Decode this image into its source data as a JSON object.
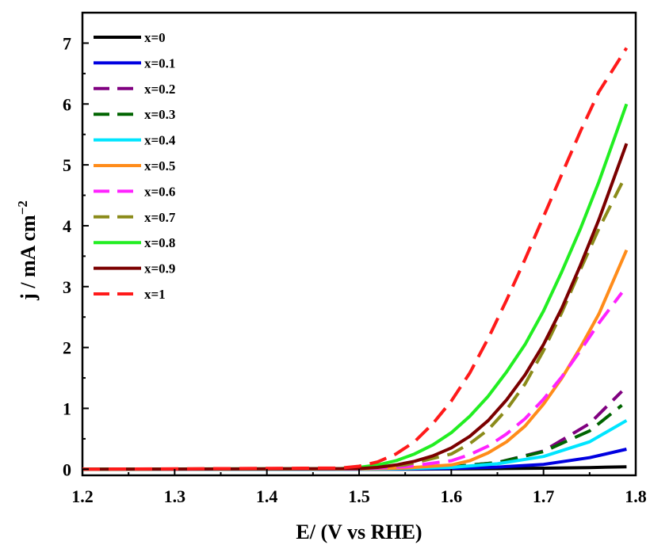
{
  "chart_data": {
    "type": "line",
    "xlabel": "E/ (V vs RHE)",
    "ylabel_main": "j / mA cm",
    "ylabel_sup": "−2",
    "xlim": [
      1.2,
      1.8
    ],
    "ylim": [
      -0.1,
      7.5
    ],
    "xticks": [
      1.2,
      1.3,
      1.4,
      1.5,
      1.6,
      1.7,
      1.8
    ],
    "xtick_labels": [
      "1.2",
      "1.3",
      "1.4",
      "1.5",
      "1.6",
      "1.7",
      "1.8"
    ],
    "yticks": [
      0,
      1,
      2,
      3,
      4,
      5,
      6,
      7
    ],
    "ytick_labels": [
      "0",
      "1",
      "2",
      "3",
      "4",
      "5",
      "6",
      "7"
    ],
    "grid": false,
    "legend_position": "top-left",
    "series": [
      {
        "name": "x=0",
        "color": "#000000",
        "dash": false,
        "x": [
          1.2,
          1.5,
          1.55,
          1.6,
          1.65,
          1.7,
          1.75,
          1.79
        ],
        "y": [
          0,
          0,
          0.002,
          0.005,
          0.01,
          0.017,
          0.027,
          0.04
        ]
      },
      {
        "name": "x=0.1",
        "color": "#0000e0",
        "dash": false,
        "x": [
          1.2,
          1.5,
          1.55,
          1.6,
          1.65,
          1.7,
          1.75,
          1.79
        ],
        "y": [
          0,
          0.002,
          0.006,
          0.015,
          0.035,
          0.08,
          0.19,
          0.33
        ]
      },
      {
        "name": "x=0.2",
        "color": "#800080",
        "dash": true,
        "x": [
          1.2,
          1.5,
          1.55,
          1.6,
          1.65,
          1.7,
          1.75,
          1.785
        ],
        "y": [
          0,
          0.003,
          0.012,
          0.04,
          0.11,
          0.3,
          0.75,
          1.28
        ]
      },
      {
        "name": "x=0.3",
        "color": "#006400",
        "dash": true,
        "x": [
          1.2,
          1.5,
          1.55,
          1.6,
          1.65,
          1.7,
          1.75,
          1.785
        ],
        "y": [
          0,
          0.003,
          0.012,
          0.04,
          0.11,
          0.29,
          0.63,
          1.05
        ]
      },
      {
        "name": "x=0.4",
        "color": "#00e5ff",
        "dash": false,
        "x": [
          1.2,
          1.5,
          1.55,
          1.6,
          1.65,
          1.7,
          1.75,
          1.79
        ],
        "y": [
          0,
          0.002,
          0.01,
          0.03,
          0.09,
          0.21,
          0.45,
          0.8
        ]
      },
      {
        "name": "x=0.5",
        "color": "#ff8c1a",
        "dash": false,
        "x": [
          1.2,
          1.5,
          1.55,
          1.6,
          1.62,
          1.64,
          1.66,
          1.68,
          1.7,
          1.72,
          1.74,
          1.76,
          1.79
        ],
        "y": [
          0,
          0.005,
          0.02,
          0.07,
          0.14,
          0.27,
          0.45,
          0.71,
          1.07,
          1.5,
          2.0,
          2.55,
          3.6
        ]
      },
      {
        "name": "x=0.6",
        "color": "#ff22ff",
        "dash": true,
        "x": [
          1.2,
          1.5,
          1.55,
          1.6,
          1.62,
          1.64,
          1.66,
          1.68,
          1.7,
          1.72,
          1.74,
          1.76,
          1.785
        ],
        "y": [
          0,
          0.008,
          0.04,
          0.14,
          0.24,
          0.38,
          0.58,
          0.83,
          1.15,
          1.52,
          1.95,
          2.4,
          2.9
        ]
      },
      {
        "name": "x=0.7",
        "color": "#8b8b1a",
        "dash": true,
        "x": [
          1.2,
          1.5,
          1.55,
          1.6,
          1.62,
          1.64,
          1.66,
          1.68,
          1.7,
          1.72,
          1.74,
          1.76,
          1.785
        ],
        "y": [
          0,
          0.01,
          0.07,
          0.25,
          0.42,
          0.65,
          0.98,
          1.4,
          1.95,
          2.58,
          3.28,
          3.95,
          4.7
        ]
      },
      {
        "name": "x=0.8",
        "color": "#22ee22",
        "dash": false,
        "x": [
          1.2,
          1.48,
          1.5,
          1.52,
          1.54,
          1.56,
          1.58,
          1.6,
          1.62,
          1.64,
          1.66,
          1.68,
          1.7,
          1.72,
          1.74,
          1.76,
          1.79
        ],
        "y": [
          0,
          0.01,
          0.03,
          0.07,
          0.14,
          0.25,
          0.4,
          0.6,
          0.87,
          1.2,
          1.6,
          2.05,
          2.6,
          3.25,
          3.95,
          4.72,
          6.0
        ]
      },
      {
        "name": "x=0.9",
        "color": "#7b0000",
        "dash": false,
        "x": [
          1.2,
          1.5,
          1.52,
          1.54,
          1.56,
          1.58,
          1.6,
          1.62,
          1.64,
          1.66,
          1.68,
          1.7,
          1.72,
          1.74,
          1.76,
          1.79
        ],
        "y": [
          0,
          0.01,
          0.03,
          0.07,
          0.13,
          0.22,
          0.35,
          0.54,
          0.8,
          1.14,
          1.55,
          2.05,
          2.65,
          3.35,
          4.1,
          5.35
        ]
      },
      {
        "name": "x=1",
        "color": "#ff1a1a",
        "dash": true,
        "x": [
          1.2,
          1.48,
          1.5,
          1.52,
          1.54,
          1.56,
          1.58,
          1.6,
          1.62,
          1.64,
          1.66,
          1.68,
          1.7,
          1.72,
          1.74,
          1.76,
          1.79
        ],
        "y": [
          0,
          0.02,
          0.05,
          0.12,
          0.25,
          0.45,
          0.75,
          1.12,
          1.58,
          2.15,
          2.78,
          3.45,
          4.15,
          4.85,
          5.55,
          6.2,
          6.92
        ]
      }
    ]
  }
}
